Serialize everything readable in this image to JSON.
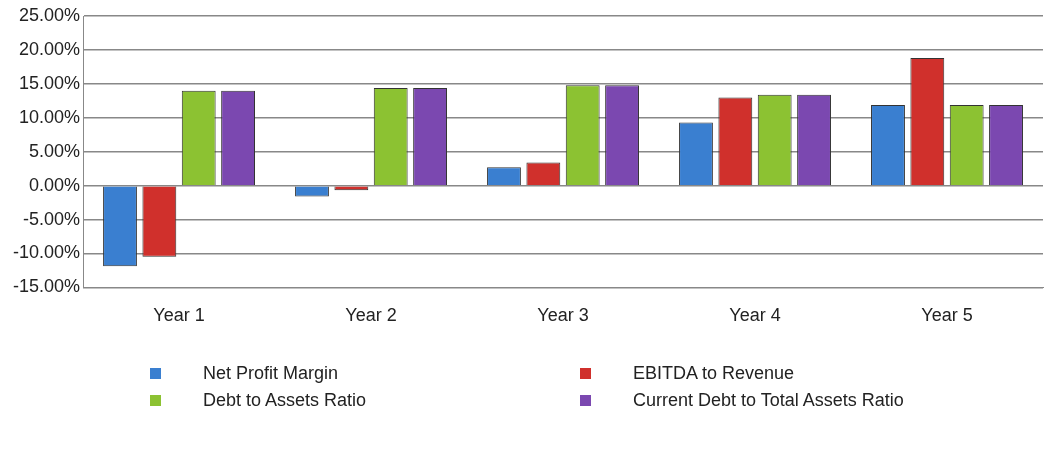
{
  "chart_data": {
    "type": "bar",
    "categories": [
      "Year 1",
      "Year 2",
      "Year 3",
      "Year 4",
      "Year 5"
    ],
    "series": [
      {
        "name": "Net Profit Margin",
        "color": "#3a7fd0",
        "values": [
          -11.9,
          -1.6,
          2.7,
          9.3,
          11.9
        ]
      },
      {
        "name": "EBITDA to Revenue",
        "color": "#d0302c",
        "values": [
          -10.5,
          -0.7,
          3.4,
          13.0,
          18.8
        ]
      },
      {
        "name": "Debt to Assets Ratio",
        "color": "#8cc232",
        "values": [
          14.0,
          14.4,
          14.8,
          13.4,
          11.9
        ]
      },
      {
        "name": "Current Debt to Total Assets Ratio",
        "color": "#7b48b0",
        "values": [
          14.0,
          14.4,
          14.8,
          13.4,
          11.9
        ]
      }
    ],
    "ylim": [
      -15,
      25
    ],
    "yticks": [
      {
        "value": -15,
        "label": "-15.00%"
      },
      {
        "value": -10,
        "label": "-10.00%"
      },
      {
        "value": -5,
        "label": "-5.00%"
      },
      {
        "value": 0,
        "label": "0.00%"
      },
      {
        "value": 5,
        "label": "5.00%"
      },
      {
        "value": 10,
        "label": "10.00%"
      },
      {
        "value": 15,
        "label": "15.00%"
      },
      {
        "value": 20,
        "label": "20.00%"
      },
      {
        "value": 25,
        "label": "25.00%"
      }
    ],
    "grid": "y",
    "legend": "bottom"
  }
}
